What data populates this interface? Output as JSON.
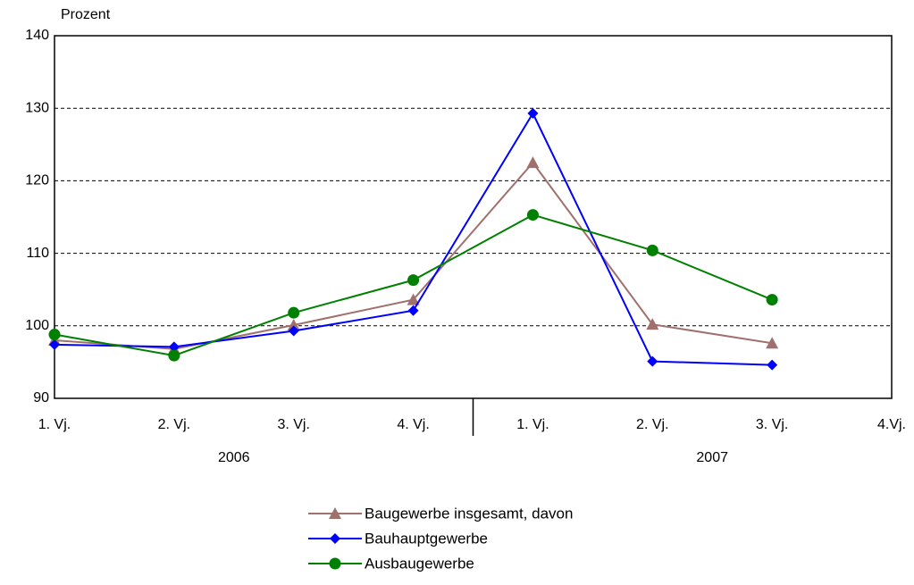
{
  "chart_data": {
    "type": "line",
    "y_label": "Prozent",
    "categories": [
      "1. Vj.",
      "2. Vj.",
      "3. Vj.",
      "4. Vj.",
      "1. Vj.",
      "2. Vj.",
      "3. Vj.",
      "4.Vj."
    ],
    "year_labels": [
      "2006",
      "2007"
    ],
    "series": [
      {
        "name": "Baugewerbe insgesamt, davon",
        "color": "#a0706c",
        "marker": "triangle",
        "values": [
          98.0,
          96.8,
          100.1,
          103.6,
          122.5,
          100.2,
          97.6,
          null
        ]
      },
      {
        "name": "Bauhauptgewerbe",
        "color": "#0000ff",
        "marker": "diamond",
        "values": [
          97.4,
          97.1,
          99.3,
          102.1,
          129.3,
          95.1,
          94.6,
          null
        ]
      },
      {
        "name": "Ausbaugewerbe",
        "color": "#008000",
        "marker": "circle",
        "values": [
          98.8,
          95.9,
          101.8,
          106.3,
          115.3,
          110.4,
          103.6,
          null
        ]
      }
    ],
    "ylim": [
      90,
      140
    ],
    "yticks": [
      90,
      100,
      110,
      120,
      130,
      140
    ],
    "grid": true,
    "legend": "bottom"
  }
}
